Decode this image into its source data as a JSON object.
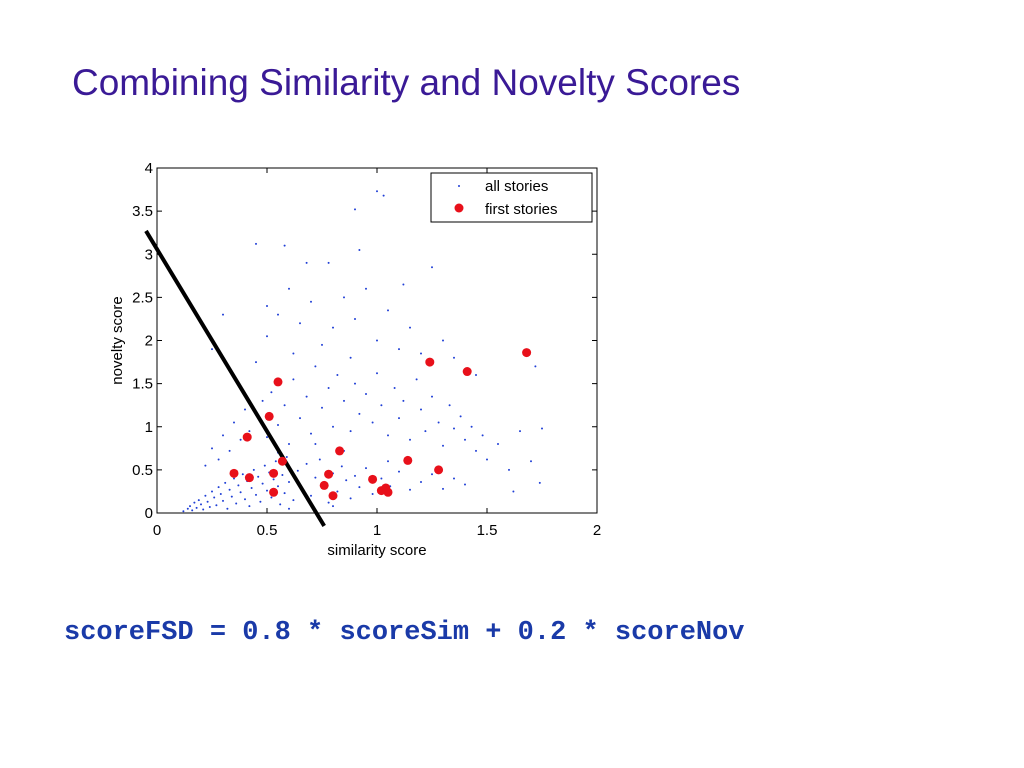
{
  "slide": {
    "title": "Combining Similarity and Novelty Scores",
    "formula": "scoreFSD = 0.8 * scoreSim + 0.2 * scoreNov",
    "title_color": "#3a1a96",
    "formula_color": "#1a3aa8"
  },
  "chart_data": {
    "type": "scatter",
    "xlabel": "similarity score",
    "ylabel": "novelty score",
    "xlim": [
      0,
      2
    ],
    "ylim": [
      0,
      4
    ],
    "xticks": [
      "0",
      "0.5",
      "1",
      "1.5",
      "2"
    ],
    "yticks": [
      "0",
      "0.5",
      "1",
      "1.5",
      "2",
      "2.5",
      "3",
      "3.5",
      "4"
    ],
    "grid": false,
    "legend_position": "top-right",
    "series": [
      {
        "name": "all stories",
        "color": "#1f3fd6",
        "marker": "dot",
        "points": [
          [
            0.12,
            0.02
          ],
          [
            0.14,
            0.05
          ],
          [
            0.15,
            0.08
          ],
          [
            0.16,
            0.03
          ],
          [
            0.17,
            0.12
          ],
          [
            0.18,
            0.06
          ],
          [
            0.19,
            0.15
          ],
          [
            0.2,
            0.1
          ],
          [
            0.21,
            0.04
          ],
          [
            0.22,
            0.2
          ],
          [
            0.23,
            0.13
          ],
          [
            0.24,
            0.07
          ],
          [
            0.25,
            0.25
          ],
          [
            0.26,
            0.18
          ],
          [
            0.27,
            0.09
          ],
          [
            0.28,
            0.3
          ],
          [
            0.29,
            0.22
          ],
          [
            0.3,
            0.14
          ],
          [
            0.31,
            0.35
          ],
          [
            0.32,
            0.05
          ],
          [
            0.33,
            0.27
          ],
          [
            0.34,
            0.19
          ],
          [
            0.35,
            0.4
          ],
          [
            0.36,
            0.11
          ],
          [
            0.37,
            0.32
          ],
          [
            0.38,
            0.24
          ],
          [
            0.39,
            0.45
          ],
          [
            0.4,
            0.16
          ],
          [
            0.41,
            0.37
          ],
          [
            0.42,
            0.08
          ],
          [
            0.43,
            0.29
          ],
          [
            0.44,
            0.5
          ],
          [
            0.45,
            0.21
          ],
          [
            0.46,
            0.42
          ],
          [
            0.47,
            0.13
          ],
          [
            0.48,
            0.34
          ],
          [
            0.49,
            0.55
          ],
          [
            0.5,
            0.26
          ],
          [
            0.51,
            0.47
          ],
          [
            0.52,
            0.18
          ],
          [
            0.53,
            0.39
          ],
          [
            0.54,
            0.6
          ],
          [
            0.55,
            0.31
          ],
          [
            0.56,
            0.1
          ],
          [
            0.57,
            0.44
          ],
          [
            0.58,
            0.23
          ],
          [
            0.59,
            0.65
          ],
          [
            0.6,
            0.36
          ],
          [
            0.62,
            0.15
          ],
          [
            0.64,
            0.49
          ],
          [
            0.66,
            0.28
          ],
          [
            0.68,
            0.57
          ],
          [
            0.7,
            0.2
          ],
          [
            0.72,
            0.41
          ],
          [
            0.74,
            0.62
          ],
          [
            0.76,
            0.33
          ],
          [
            0.78,
            0.12
          ],
          [
            0.8,
            0.46
          ],
          [
            0.82,
            0.25
          ],
          [
            0.84,
            0.54
          ],
          [
            0.86,
            0.38
          ],
          [
            0.88,
            0.17
          ],
          [
            0.9,
            0.43
          ],
          [
            0.92,
            0.3
          ],
          [
            0.95,
            0.52
          ],
          [
            0.98,
            0.22
          ],
          [
            1.02,
            0.4
          ],
          [
            1.06,
            0.31
          ],
          [
            1.1,
            0.48
          ],
          [
            1.15,
            0.27
          ],
          [
            1.2,
            0.36
          ],
          [
            1.25,
            0.45
          ],
          [
            1.3,
            0.28
          ],
          [
            1.35,
            0.4
          ],
          [
            1.4,
            0.33
          ],
          [
            0.22,
            0.55
          ],
          [
            0.25,
            0.75
          ],
          [
            0.28,
            0.62
          ],
          [
            0.3,
            0.9
          ],
          [
            0.33,
            0.72
          ],
          [
            0.35,
            1.05
          ],
          [
            0.38,
            0.85
          ],
          [
            0.4,
            1.2
          ],
          [
            0.42,
            0.95
          ],
          [
            0.45,
            1.15
          ],
          [
            0.48,
            1.3
          ],
          [
            0.5,
            0.88
          ],
          [
            0.52,
            1.4
          ],
          [
            0.55,
            1.02
          ],
          [
            0.58,
            1.25
          ],
          [
            0.6,
            0.8
          ],
          [
            0.62,
            1.55
          ],
          [
            0.65,
            1.1
          ],
          [
            0.68,
            1.35
          ],
          [
            0.7,
            0.92
          ],
          [
            0.72,
            1.7
          ],
          [
            0.75,
            1.22
          ],
          [
            0.78,
            1.45
          ],
          [
            0.8,
            1.0
          ],
          [
            0.82,
            1.6
          ],
          [
            0.85,
            1.3
          ],
          [
            0.88,
            0.95
          ],
          [
            0.9,
            1.5
          ],
          [
            0.92,
            1.15
          ],
          [
            0.95,
            1.38
          ],
          [
            0.98,
            1.05
          ],
          [
            1.0,
            1.62
          ],
          [
            1.02,
            1.25
          ],
          [
            1.05,
            0.9
          ],
          [
            1.08,
            1.45
          ],
          [
            1.1,
            1.1
          ],
          [
            1.12,
            1.3
          ],
          [
            1.15,
            0.85
          ],
          [
            1.18,
            1.55
          ],
          [
            1.2,
            1.2
          ],
          [
            1.22,
            0.95
          ],
          [
            1.25,
            1.35
          ],
          [
            1.28,
            1.05
          ],
          [
            1.3,
            0.78
          ],
          [
            1.33,
            1.25
          ],
          [
            1.35,
            0.98
          ],
          [
            1.38,
            1.12
          ],
          [
            1.4,
            0.85
          ],
          [
            1.43,
            1.0
          ],
          [
            1.45,
            0.72
          ],
          [
            1.48,
            0.9
          ],
          [
            1.5,
            0.62
          ],
          [
            1.55,
            0.8
          ],
          [
            1.6,
            0.5
          ],
          [
            1.65,
            0.95
          ],
          [
            1.7,
            0.6
          ],
          [
            1.72,
            1.7
          ],
          [
            1.74,
            0.35
          ],
          [
            1.75,
            0.98
          ],
          [
            1.62,
            0.25
          ],
          [
            0.45,
            1.75
          ],
          [
            0.5,
            2.05
          ],
          [
            0.55,
            2.3
          ],
          [
            0.6,
            2.6
          ],
          [
            0.62,
            1.85
          ],
          [
            0.65,
            2.2
          ],
          [
            0.7,
            2.45
          ],
          [
            0.75,
            1.95
          ],
          [
            0.78,
            2.9
          ],
          [
            0.8,
            2.15
          ],
          [
            0.85,
            2.5
          ],
          [
            0.88,
            1.8
          ],
          [
            0.9,
            2.25
          ],
          [
            0.95,
            2.6
          ],
          [
            1.0,
            2.0
          ],
          [
            1.05,
            2.35
          ],
          [
            1.1,
            1.9
          ],
          [
            1.12,
            2.65
          ],
          [
            1.15,
            2.15
          ],
          [
            1.2,
            1.85
          ],
          [
            1.25,
            2.85
          ],
          [
            1.3,
            2.0
          ],
          [
            1.35,
            1.8
          ],
          [
            1.45,
            1.6
          ],
          [
            0.68,
            2.9
          ],
          [
            0.58,
            3.1
          ],
          [
            0.45,
            3.12
          ],
          [
            0.9,
            3.52
          ],
          [
            0.92,
            3.05
          ],
          [
            1.0,
            3.73
          ],
          [
            1.03,
            3.68
          ],
          [
            0.5,
            2.4
          ],
          [
            0.3,
            2.3
          ],
          [
            0.25,
            1.9
          ],
          [
            0.55,
            0.7
          ],
          [
            0.72,
            0.8
          ],
          [
            0.85,
            0.72
          ],
          [
            1.05,
            0.6
          ],
          [
            0.6,
            0.05
          ],
          [
            0.8,
            0.08
          ]
        ]
      },
      {
        "name": "first stories",
        "color": "#e8101a",
        "marker": "filled-circle",
        "points": [
          [
            1.68,
            1.86
          ],
          [
            1.24,
            1.75
          ],
          [
            1.41,
            1.64
          ],
          [
            0.55,
            1.52
          ],
          [
            0.51,
            1.12
          ],
          [
            0.41,
            0.88
          ],
          [
            0.57,
            0.6
          ],
          [
            0.35,
            0.46
          ],
          [
            0.42,
            0.41
          ],
          [
            0.53,
            0.46
          ],
          [
            0.53,
            0.24
          ],
          [
            0.76,
            0.32
          ],
          [
            0.78,
            0.45
          ],
          [
            0.8,
            0.2
          ],
          [
            0.83,
            0.72
          ],
          [
            0.98,
            0.39
          ],
          [
            1.02,
            0.26
          ],
          [
            1.04,
            0.29
          ],
          [
            1.05,
            0.24
          ],
          [
            1.14,
            0.61
          ],
          [
            1.28,
            0.5
          ]
        ]
      }
    ],
    "annotation_line": {
      "color": "#000000",
      "x": [
        -0.05,
        0.76
      ],
      "y": [
        3.27,
        -0.15
      ]
    }
  }
}
